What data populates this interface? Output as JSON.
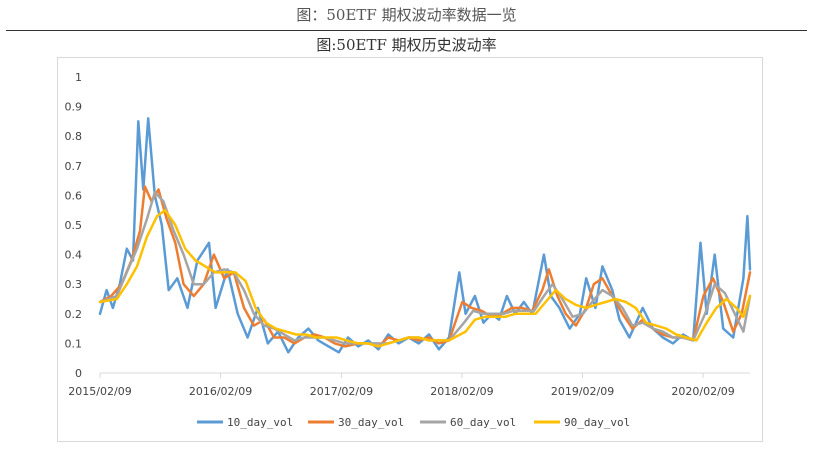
{
  "page": {
    "title": "图：50ETF 期权波动率数据一览"
  },
  "chart_data": {
    "type": "line",
    "title": "图:50ETF 期权历史波动率",
    "xlabel": "",
    "ylabel": "",
    "ylim": [
      0,
      1
    ],
    "y_ticks": [
      "0",
      "0.1",
      "0.2",
      "0.3",
      "0.4",
      "0.5",
      "0.6",
      "0.7",
      "0.8",
      "0.9",
      "1"
    ],
    "x_ticks": [
      "2015/02/09",
      "2016/02/09",
      "2017/02/09",
      "2018/02/09",
      "2019/02/09",
      "2020/02/09"
    ],
    "x_range": [
      "2015/02/09",
      "2020/06/30"
    ],
    "grid": false,
    "legend_position": "bottom",
    "series": [
      {
        "name": "10_day_vol",
        "color": "#5b9bd5",
        "points": [
          [
            "2015/02/09",
            0.2
          ],
          [
            "2015/03/01",
            0.28
          ],
          [
            "2015/03/20",
            0.22
          ],
          [
            "2015/04/10",
            0.3
          ],
          [
            "2015/05/01",
            0.42
          ],
          [
            "2015/05/20",
            0.38
          ],
          [
            "2015/06/05",
            0.85
          ],
          [
            "2015/06/20",
            0.62
          ],
          [
            "2015/07/05",
            0.86
          ],
          [
            "2015/07/25",
            0.6
          ],
          [
            "2015/08/15",
            0.5
          ],
          [
            "2015/09/05",
            0.28
          ],
          [
            "2015/10/01",
            0.32
          ],
          [
            "2015/11/01",
            0.22
          ],
          [
            "2015/12/01",
            0.38
          ],
          [
            "2016/01/05",
            0.44
          ],
          [
            "2016/01/25",
            0.22
          ],
          [
            "2016/03/01",
            0.35
          ],
          [
            "2016/04/01",
            0.2
          ],
          [
            "2016/05/01",
            0.12
          ],
          [
            "2016/06/01",
            0.22
          ],
          [
            "2016/07/01",
            0.1
          ],
          [
            "2016/08/01",
            0.14
          ],
          [
            "2016/09/01",
            0.07
          ],
          [
            "2016/10/01",
            0.12
          ],
          [
            "2016/11/01",
            0.15
          ],
          [
            "2016/12/01",
            0.11
          ],
          [
            "2017/01/01",
            0.09
          ],
          [
            "2017/02/01",
            0.07
          ],
          [
            "2017/03/01",
            0.12
          ],
          [
            "2017/04/01",
            0.09
          ],
          [
            "2017/05/01",
            0.11
          ],
          [
            "2017/06/01",
            0.08
          ],
          [
            "2017/07/01",
            0.13
          ],
          [
            "2017/08/01",
            0.1
          ],
          [
            "2017/09/01",
            0.12
          ],
          [
            "2017/10/01",
            0.1
          ],
          [
            "2017/11/01",
            0.13
          ],
          [
            "2017/12/01",
            0.08
          ],
          [
            "2018/01/01",
            0.12
          ],
          [
            "2018/02/01",
            0.34
          ],
          [
            "2018/02/20",
            0.2
          ],
          [
            "2018/03/20",
            0.26
          ],
          [
            "2018/04/15",
            0.17
          ],
          [
            "2018/05/10",
            0.2
          ],
          [
            "2018/06/01",
            0.18
          ],
          [
            "2018/06/25",
            0.26
          ],
          [
            "2018/07/20",
            0.2
          ],
          [
            "2018/08/15",
            0.24
          ],
          [
            "2018/09/10",
            0.2
          ],
          [
            "2018/10/15",
            0.4
          ],
          [
            "2018/11/05",
            0.26
          ],
          [
            "2018/12/01",
            0.22
          ],
          [
            "2019/01/01",
            0.15
          ],
          [
            "2019/02/01",
            0.2
          ],
          [
            "2019/02/20",
            0.32
          ],
          [
            "2019/03/20",
            0.22
          ],
          [
            "2019/04/10",
            0.36
          ],
          [
            "2019/05/10",
            0.28
          ],
          [
            "2019/06/01",
            0.18
          ],
          [
            "2019/07/01",
            0.12
          ],
          [
            "2019/08/10",
            0.22
          ],
          [
            "2019/09/10",
            0.15
          ],
          [
            "2019/10/10",
            0.12
          ],
          [
            "2019/11/10",
            0.1
          ],
          [
            "2019/12/10",
            0.13
          ],
          [
            "2020/01/10",
            0.11
          ],
          [
            "2020/02/01",
            0.44
          ],
          [
            "2020/02/20",
            0.2
          ],
          [
            "2020/03/15",
            0.4
          ],
          [
            "2020/04/10",
            0.15
          ],
          [
            "2020/05/10",
            0.12
          ],
          [
            "2020/06/10",
            0.32
          ],
          [
            "2020/06/22",
            0.53
          ],
          [
            "2020/06/30",
            0.35
          ]
        ]
      },
      {
        "name": "30_day_vol",
        "color": "#ed7d31",
        "points": [
          [
            "2015/02/09",
            0.24
          ],
          [
            "2015/03/15",
            0.26
          ],
          [
            "2015/04/15",
            0.3
          ],
          [
            "2015/05/15",
            0.38
          ],
          [
            "2015/06/10",
            0.48
          ],
          [
            "2015/06/25",
            0.63
          ],
          [
            "2015/07/15",
            0.58
          ],
          [
            "2015/08/05",
            0.62
          ],
          [
            "2015/08/30",
            0.52
          ],
          [
            "2015/09/25",
            0.44
          ],
          [
            "2015/10/20",
            0.3
          ],
          [
            "2015/11/20",
            0.26
          ],
          [
            "2015/12/20",
            0.3
          ],
          [
            "2016/01/20",
            0.4
          ],
          [
            "2016/02/20",
            0.32
          ],
          [
            "2016/03/20",
            0.34
          ],
          [
            "2016/04/20",
            0.22
          ],
          [
            "2016/05/20",
            0.16
          ],
          [
            "2016/06/20",
            0.18
          ],
          [
            "2016/07/20",
            0.12
          ],
          [
            "2016/08/20",
            0.12
          ],
          [
            "2016/09/20",
            0.1
          ],
          [
            "2016/10/20",
            0.12
          ],
          [
            "2016/11/20",
            0.13
          ],
          [
            "2016/12/20",
            0.12
          ],
          [
            "2017/01/20",
            0.1
          ],
          [
            "2017/02/20",
            0.09
          ],
          [
            "2017/04/01",
            0.1
          ],
          [
            "2017/05/01",
            0.1
          ],
          [
            "2017/06/01",
            0.09
          ],
          [
            "2017/07/01",
            0.12
          ],
          [
            "2017/08/01",
            0.11
          ],
          [
            "2017/09/01",
            0.12
          ],
          [
            "2017/10/01",
            0.11
          ],
          [
            "2017/11/01",
            0.12
          ],
          [
            "2017/12/01",
            0.1
          ],
          [
            "2018/01/01",
            0.11
          ],
          [
            "2018/02/10",
            0.24
          ],
          [
            "2018/03/10",
            0.22
          ],
          [
            "2018/04/10",
            0.21
          ],
          [
            "2018/05/10",
            0.19
          ],
          [
            "2018/06/10",
            0.2
          ],
          [
            "2018/07/10",
            0.22
          ],
          [
            "2018/08/10",
            0.22
          ],
          [
            "2018/09/10",
            0.21
          ],
          [
            "2018/10/10",
            0.28
          ],
          [
            "2018/10/30",
            0.35
          ],
          [
            "2018/11/25",
            0.26
          ],
          [
            "2018/12/20",
            0.2
          ],
          [
            "2019/01/20",
            0.16
          ],
          [
            "2019/02/20",
            0.22
          ],
          [
            "2019/03/15",
            0.3
          ],
          [
            "2019/04/10",
            0.32
          ],
          [
            "2019/05/10",
            0.26
          ],
          [
            "2019/06/10",
            0.2
          ],
          [
            "2019/07/10",
            0.15
          ],
          [
            "2019/08/10",
            0.18
          ],
          [
            "2019/09/10",
            0.15
          ],
          [
            "2019/10/10",
            0.13
          ],
          [
            "2019/11/10",
            0.12
          ],
          [
            "2019/12/10",
            0.12
          ],
          [
            "2020/01/10",
            0.11
          ],
          [
            "2020/02/10",
            0.26
          ],
          [
            "2020/03/10",
            0.32
          ],
          [
            "2020/04/10",
            0.24
          ],
          [
            "2020/05/10",
            0.14
          ],
          [
            "2020/06/05",
            0.2
          ],
          [
            "2020/06/30",
            0.34
          ]
        ]
      },
      {
        "name": "60_day_vol",
        "color": "#a5a5a5",
        "points": [
          [
            "2015/02/09",
            0.24
          ],
          [
            "2015/04/01",
            0.26
          ],
          [
            "2015/05/01",
            0.34
          ],
          [
            "2015/06/01",
            0.42
          ],
          [
            "2015/07/01",
            0.52
          ],
          [
            "2015/07/25",
            0.61
          ],
          [
            "2015/08/20",
            0.58
          ],
          [
            "2015/09/20",
            0.48
          ],
          [
            "2015/10/20",
            0.4
          ],
          [
            "2015/11/20",
            0.3
          ],
          [
            "2015/12/20",
            0.3
          ],
          [
            "2016/01/20",
            0.34
          ],
          [
            "2016/02/20",
            0.35
          ],
          [
            "2016/03/20",
            0.34
          ],
          [
            "2016/04/20",
            0.28
          ],
          [
            "2016/05/20",
            0.2
          ],
          [
            "2016/06/20",
            0.16
          ],
          [
            "2016/07/20",
            0.15
          ],
          [
            "2016/08/20",
            0.13
          ],
          [
            "2016/09/20",
            0.11
          ],
          [
            "2016/10/20",
            0.12
          ],
          [
            "2016/11/20",
            0.12
          ],
          [
            "2016/12/20",
            0.12
          ],
          [
            "2017/01/20",
            0.11
          ],
          [
            "2017/02/20",
            0.1
          ],
          [
            "2017/04/01",
            0.1
          ],
          [
            "2017/05/01",
            0.1
          ],
          [
            "2017/06/01",
            0.1
          ],
          [
            "2017/07/01",
            0.1
          ],
          [
            "2017/08/01",
            0.11
          ],
          [
            "2017/09/01",
            0.12
          ],
          [
            "2017/10/01",
            0.12
          ],
          [
            "2017/11/01",
            0.11
          ],
          [
            "2017/12/01",
            0.11
          ],
          [
            "2018/01/01",
            0.11
          ],
          [
            "2018/02/15",
            0.17
          ],
          [
            "2018/03/15",
            0.21
          ],
          [
            "2018/04/15",
            0.2
          ],
          [
            "2018/05/15",
            0.2
          ],
          [
            "2018/06/15",
            0.2
          ],
          [
            "2018/07/15",
            0.21
          ],
          [
            "2018/08/15",
            0.21
          ],
          [
            "2018/09/15",
            0.21
          ],
          [
            "2018/10/15",
            0.26
          ],
          [
            "2018/11/10",
            0.3
          ],
          [
            "2018/12/10",
            0.25
          ],
          [
            "2019/01/10",
            0.19
          ],
          [
            "2019/02/10",
            0.2
          ],
          [
            "2019/03/10",
            0.24
          ],
          [
            "2019/04/10",
            0.28
          ],
          [
            "2019/05/10",
            0.26
          ],
          [
            "2019/06/10",
            0.22
          ],
          [
            "2019/07/10",
            0.16
          ],
          [
            "2019/08/10",
            0.17
          ],
          [
            "2019/09/10",
            0.15
          ],
          [
            "2019/10/10",
            0.14
          ],
          [
            "2019/11/10",
            0.12
          ],
          [
            "2019/12/10",
            0.12
          ],
          [
            "2020/01/10",
            0.11
          ],
          [
            "2020/02/15",
            0.2
          ],
          [
            "2020/03/15",
            0.3
          ],
          [
            "2020/04/15",
            0.27
          ],
          [
            "2020/05/15",
            0.2
          ],
          [
            "2020/06/10",
            0.14
          ],
          [
            "2020/06/30",
            0.26
          ]
        ]
      },
      {
        "name": "90_day_vol",
        "color": "#ffc000",
        "points": [
          [
            "2015/02/09",
            0.24
          ],
          [
            "2015/04/01",
            0.25
          ],
          [
            "2015/05/01",
            0.3
          ],
          [
            "2015/06/01",
            0.36
          ],
          [
            "2015/07/01",
            0.46
          ],
          [
            "2015/08/01",
            0.53
          ],
          [
            "2015/08/25",
            0.55
          ],
          [
            "2015/09/25",
            0.5
          ],
          [
            "2015/10/25",
            0.42
          ],
          [
            "2015/11/25",
            0.38
          ],
          [
            "2015/12/25",
            0.36
          ],
          [
            "2016/01/25",
            0.34
          ],
          [
            "2016/02/25",
            0.34
          ],
          [
            "2016/03/25",
            0.34
          ],
          [
            "2016/04/25",
            0.31
          ],
          [
            "2016/05/25",
            0.22
          ],
          [
            "2016/06/25",
            0.17
          ],
          [
            "2016/07/25",
            0.15
          ],
          [
            "2016/08/25",
            0.14
          ],
          [
            "2016/09/25",
            0.13
          ],
          [
            "2016/10/25",
            0.13
          ],
          [
            "2016/11/25",
            0.12
          ],
          [
            "2016/12/25",
            0.12
          ],
          [
            "2017/01/25",
            0.12
          ],
          [
            "2017/02/25",
            0.11
          ],
          [
            "2017/04/01",
            0.1
          ],
          [
            "2017/05/01",
            0.1
          ],
          [
            "2017/06/01",
            0.09
          ],
          [
            "2017/07/01",
            0.1
          ],
          [
            "2017/08/01",
            0.11
          ],
          [
            "2017/09/01",
            0.12
          ],
          [
            "2017/10/01",
            0.12
          ],
          [
            "2017/11/01",
            0.11
          ],
          [
            "2017/12/01",
            0.11
          ],
          [
            "2018/01/01",
            0.11
          ],
          [
            "2018/02/20",
            0.14
          ],
          [
            "2018/03/20",
            0.18
          ],
          [
            "2018/04/20",
            0.19
          ],
          [
            "2018/05/20",
            0.19
          ],
          [
            "2018/06/20",
            0.19
          ],
          [
            "2018/07/20",
            0.2
          ],
          [
            "2018/08/20",
            0.2
          ],
          [
            "2018/09/20",
            0.2
          ],
          [
            "2018/10/20",
            0.24
          ],
          [
            "2018/11/20",
            0.28
          ],
          [
            "2018/12/20",
            0.25
          ],
          [
            "2019/01/20",
            0.23
          ],
          [
            "2019/02/20",
            0.22
          ],
          [
            "2019/03/20",
            0.23
          ],
          [
            "2019/04/20",
            0.24
          ],
          [
            "2019/05/20",
            0.25
          ],
          [
            "2019/06/20",
            0.24
          ],
          [
            "2019/07/20",
            0.22
          ],
          [
            "2019/08/20",
            0.17
          ],
          [
            "2019/09/20",
            0.16
          ],
          [
            "2019/10/20",
            0.15
          ],
          [
            "2019/11/20",
            0.13
          ],
          [
            "2019/12/20",
            0.12
          ],
          [
            "2020/01/20",
            0.11
          ],
          [
            "2020/02/20",
            0.17
          ],
          [
            "2020/03/20",
            0.22
          ],
          [
            "2020/04/20",
            0.25
          ],
          [
            "2020/05/20",
            0.22
          ],
          [
            "2020/06/10",
            0.19
          ],
          [
            "2020/06/30",
            0.26
          ]
        ]
      }
    ]
  }
}
